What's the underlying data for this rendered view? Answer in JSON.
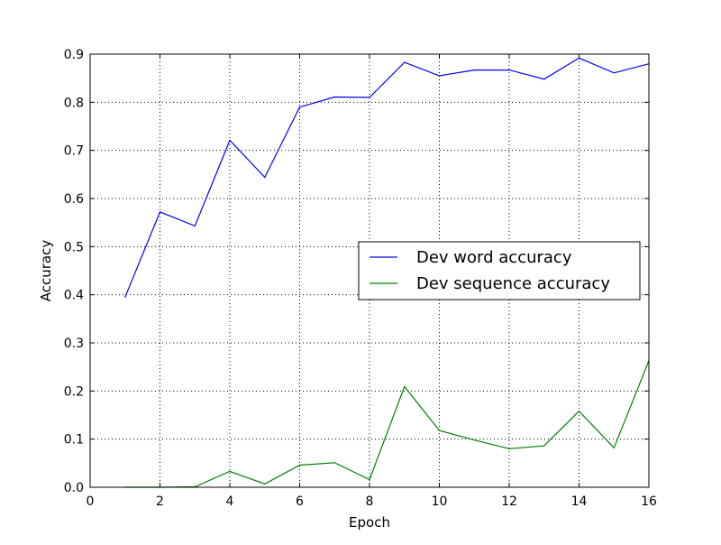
{
  "chart_data": {
    "type": "line",
    "title": "",
    "xlabel": "Epoch",
    "ylabel": "Accuracy",
    "xlim": [
      0,
      16
    ],
    "ylim": [
      0.0,
      0.9
    ],
    "xticks": [
      0,
      2,
      4,
      6,
      8,
      10,
      12,
      14,
      16
    ],
    "xtick_labels": [
      "0",
      "2",
      "4",
      "6",
      "8",
      "10",
      "12",
      "14",
      "16"
    ],
    "yticks": [
      0.0,
      0.1,
      0.2,
      0.3,
      0.4,
      0.5,
      0.6,
      0.7,
      0.8,
      0.9
    ],
    "ytick_labels": [
      "0.0",
      "0.1",
      "0.2",
      "0.3",
      "0.4",
      "0.5",
      "0.6",
      "0.7",
      "0.8",
      "0.9"
    ],
    "grid": true,
    "legend_position": "center-right",
    "x": [
      1,
      2,
      3,
      4,
      5,
      6,
      7,
      8,
      9,
      10,
      11,
      12,
      13,
      14,
      15,
      16
    ],
    "series": [
      {
        "name": "Dev word accuracy",
        "color": "#0000ff",
        "values": [
          0.395,
          0.572,
          0.543,
          0.721,
          0.644,
          0.79,
          0.811,
          0.81,
          0.883,
          0.855,
          0.867,
          0.867,
          0.848,
          0.892,
          0.861,
          0.88
        ]
      },
      {
        "name": "Dev sequence accuracy",
        "color": "#008000",
        "values": [
          0.0,
          0.0,
          0.001,
          0.033,
          0.007,
          0.046,
          0.051,
          0.016,
          0.209,
          0.118,
          0.098,
          0.08,
          0.086,
          0.158,
          0.082,
          0.263
        ]
      }
    ]
  }
}
